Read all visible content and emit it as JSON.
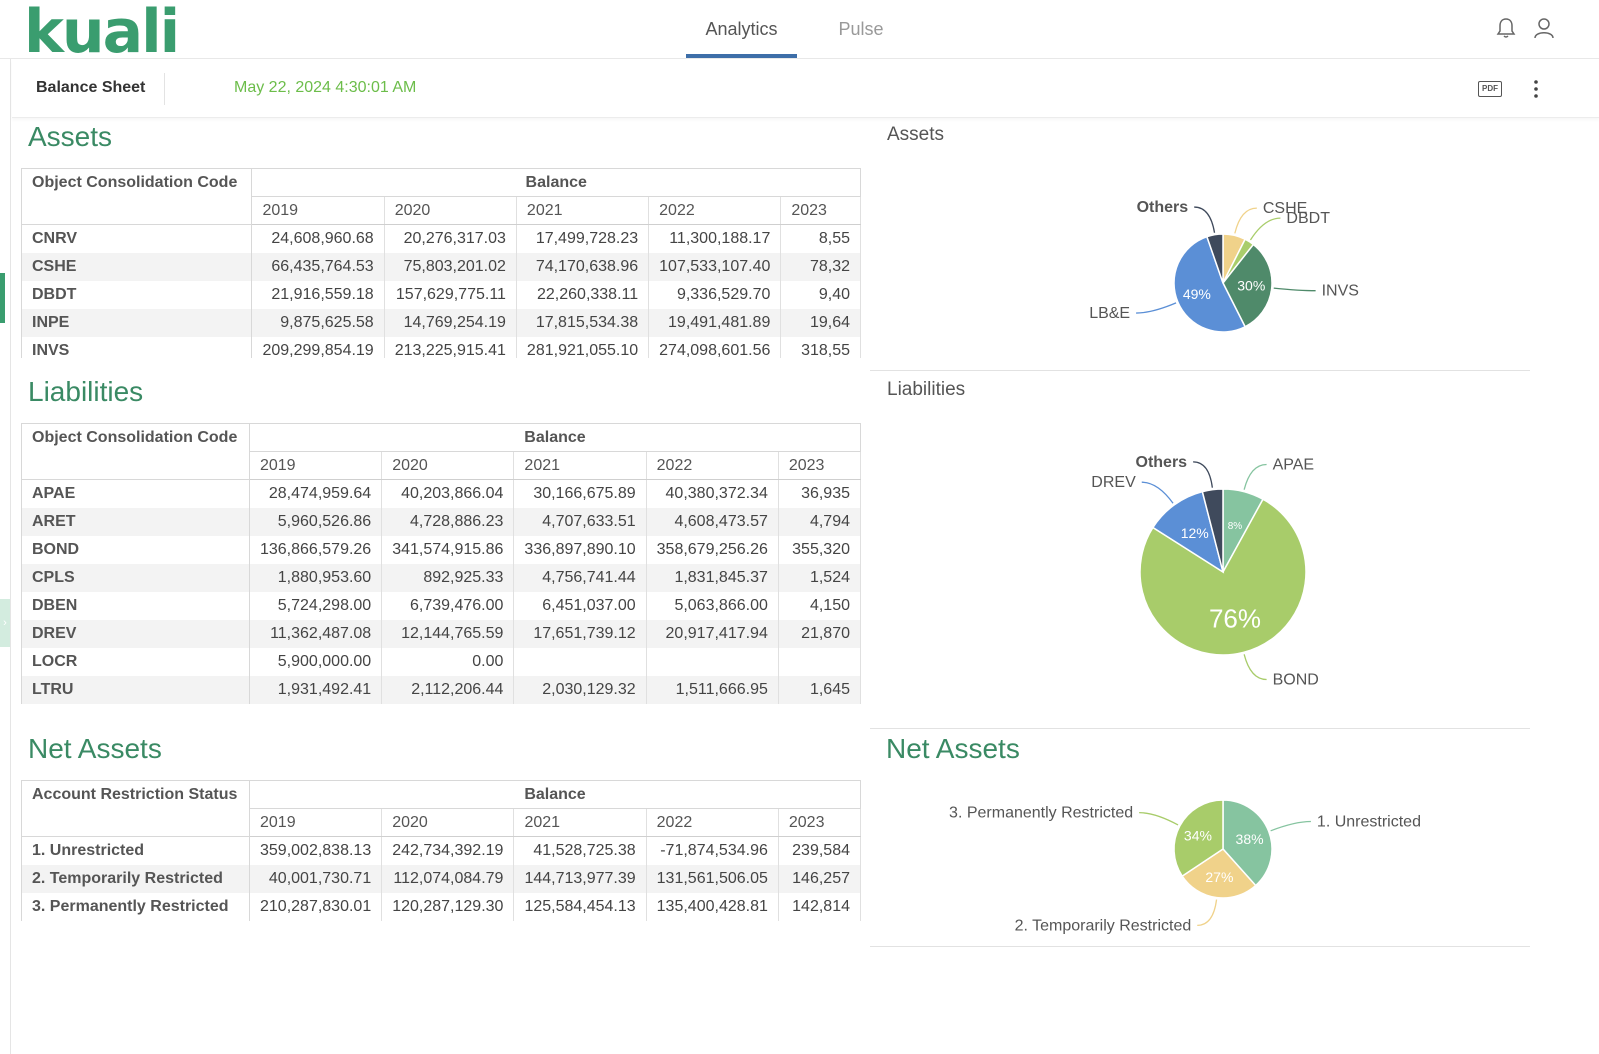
{
  "app": {
    "logo": "kuali",
    "tabs": [
      {
        "label": "Analytics",
        "active": true
      },
      {
        "label": "Pulse",
        "active": false
      }
    ],
    "icons": [
      "bell-icon",
      "user-icon"
    ]
  },
  "report": {
    "title": "Balance Sheet",
    "timestamp": "May 22, 2024 4:30:01 AM",
    "pdf_label": "PDF"
  },
  "assets_table": {
    "title": "Assets",
    "corner": "Object Consolidation Code",
    "group_header": "Balance",
    "years": [
      "2019",
      "2020",
      "2021",
      "2022",
      "2023"
    ],
    "rows": [
      {
        "code": "CNRV",
        "values": [
          "24,608,960.68",
          "20,276,317.03",
          "17,499,728.23",
          "11,300,188.17",
          "8,55"
        ]
      },
      {
        "code": "CSHE",
        "values": [
          "66,435,764.53",
          "75,803,201.02",
          "74,170,638.96",
          "107,533,107.40",
          "78,32"
        ]
      },
      {
        "code": "DBDT",
        "values": [
          "21,916,559.18",
          "157,629,775.11",
          "22,260,338.11",
          "9,336,529.70",
          "9,40"
        ]
      },
      {
        "code": "INPE",
        "values": [
          "9,875,625.58",
          "14,769,254.19",
          "17,815,534.38",
          "19,491,481.89",
          "19,64"
        ]
      },
      {
        "code": "INVS",
        "values": [
          "209,299,854.19",
          "213,225,915.41",
          "281,921,055.10",
          "274,098,601.56",
          "318,55"
        ]
      }
    ]
  },
  "liabilities_table": {
    "title": "Liabilities",
    "corner": "Object Consolidation Code",
    "group_header": "Balance",
    "years": [
      "2019",
      "2020",
      "2021",
      "2022",
      "2023"
    ],
    "rows": [
      {
        "code": "APAE",
        "values": [
          "28,474,959.64",
          "40,203,866.04",
          "30,166,675.89",
          "40,380,372.34",
          "36,935"
        ]
      },
      {
        "code": "ARET",
        "values": [
          "5,960,526.86",
          "4,728,886.23",
          "4,707,633.51",
          "4,608,473.57",
          "4,794"
        ]
      },
      {
        "code": "BOND",
        "values": [
          "136,866,579.26",
          "341,574,915.86",
          "336,897,890.10",
          "358,679,256.26",
          "355,320"
        ]
      },
      {
        "code": "CPLS",
        "values": [
          "1,880,953.60",
          "892,925.33",
          "4,756,741.44",
          "1,831,845.37",
          "1,524"
        ]
      },
      {
        "code": "DBEN",
        "values": [
          "5,724,298.00",
          "6,739,476.00",
          "6,451,037.00",
          "5,063,866.00",
          "4,150"
        ]
      },
      {
        "code": "DREV",
        "values": [
          "11,362,487.08",
          "12,144,765.59",
          "17,651,739.12",
          "20,917,417.94",
          "21,870"
        ]
      },
      {
        "code": "LOCR",
        "values": [
          "5,900,000.00",
          "0.00",
          "",
          "",
          ""
        ]
      },
      {
        "code": "LTRU",
        "values": [
          "1,931,492.41",
          "2,112,206.44",
          "2,030,129.32",
          "1,511,666.95",
          "1,645"
        ]
      }
    ]
  },
  "net_assets_table": {
    "title": "Net Assets",
    "corner": "Account Restriction Status",
    "group_header": "Balance",
    "years": [
      "2019",
      "2020",
      "2021",
      "2022",
      "2023"
    ],
    "rows": [
      {
        "code": "1. Unrestricted",
        "values": [
          "359,002,838.13",
          "242,734,392.19",
          "41,528,725.38",
          "-71,874,534.96",
          "239,584"
        ]
      },
      {
        "code": "2. Temporarily Restricted",
        "values": [
          "40,001,730.71",
          "112,074,084.79",
          "144,713,977.39",
          "131,561,506.05",
          "146,257"
        ]
      },
      {
        "code": "3. Permanently Restricted",
        "values": [
          "210,287,830.01",
          "120,287,129.30",
          "125,584,454.13",
          "135,400,428.81",
          "142,814"
        ]
      }
    ]
  },
  "chart_data": [
    {
      "type": "pie",
      "title": "Assets",
      "slices": [
        {
          "label": "CSHE",
          "value": 7,
          "pct_label": "",
          "color": "#f0d28a"
        },
        {
          "label": "DBDT",
          "value": 3,
          "pct_label": "",
          "color": "#a9cd6b"
        },
        {
          "label": "INVS",
          "value": 30,
          "pct_label": "30%",
          "color": "#4f8a6a"
        },
        {
          "label": "LB&E",
          "value": 49,
          "pct_label": "49%",
          "color": "#5b8fd6"
        },
        {
          "label": "Others",
          "value": 5,
          "pct_label": "",
          "color": "#3f4a5c"
        }
      ]
    },
    {
      "type": "pie",
      "title": "Liabilities",
      "slices": [
        {
          "label": "APAE",
          "value": 8,
          "pct_label": "8%",
          "color": "#86c4a0"
        },
        {
          "label": "BOND",
          "value": 76,
          "pct_label": "76%",
          "color": "#a8cc6a"
        },
        {
          "label": "DREV",
          "value": 12,
          "pct_label": "12%",
          "color": "#5b8fd6"
        },
        {
          "label": "Others",
          "value": 4,
          "pct_label": "",
          "color": "#3f4a5c"
        }
      ]
    },
    {
      "type": "pie",
      "title": "Net Assets",
      "slices": [
        {
          "label": "1. Unrestricted",
          "value": 38,
          "pct_label": "38%",
          "color": "#86c4a0"
        },
        {
          "label": "2. Temporarily Restricted",
          "value": 27,
          "pct_label": "27%",
          "color": "#f0d28a"
        },
        {
          "label": "3. Permanently Restricted",
          "value": 34,
          "pct_label": "34%",
          "color": "#a8cc6a"
        }
      ]
    }
  ]
}
